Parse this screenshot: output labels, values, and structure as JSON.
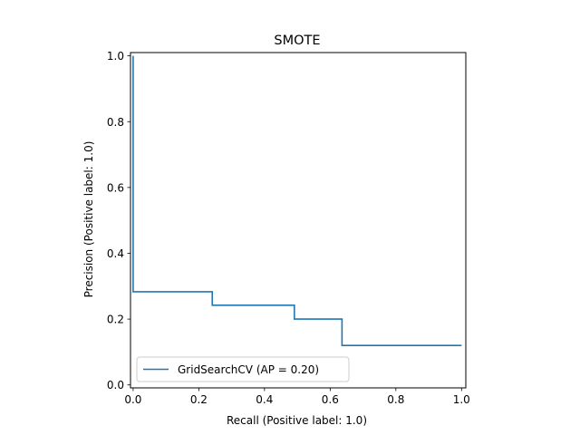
{
  "chart_data": {
    "type": "line",
    "title": "SMOTE",
    "xlabel": "Recall (Positive label: 1.0)",
    "ylabel": "Precision (Positive label: 1.0)",
    "xlim": [
      -0.008,
      1.013
    ],
    "ylim": [
      -0.009,
      1.01
    ],
    "x_ticks": [
      0.0,
      0.2,
      0.4,
      0.6,
      0.8,
      1.0
    ],
    "x_tick_labels": [
      "0.0",
      "0.2",
      "0.4",
      "0.6",
      "0.8",
      "1.0"
    ],
    "y_ticks": [
      0.0,
      0.2,
      0.4,
      0.6,
      0.8,
      1.0
    ],
    "y_tick_labels": [
      "0.0",
      "0.2",
      "0.4",
      "0.6",
      "0.8",
      "1.0"
    ],
    "grid": false,
    "legend_position": "lower-left",
    "series": [
      {
        "name": "GridSearchCV (AP = 0.20)",
        "color": "#1f77b4",
        "drawstyle": "steps-post",
        "recall": [
          1.0,
          0.636,
          0.636,
          0.491,
          0.491,
          0.241,
          0.241,
          0.0,
          0.0
        ],
        "precision": [
          0.12,
          0.12,
          0.2,
          0.2,
          0.242,
          0.242,
          0.283,
          0.283,
          1.0
        ]
      }
    ]
  }
}
